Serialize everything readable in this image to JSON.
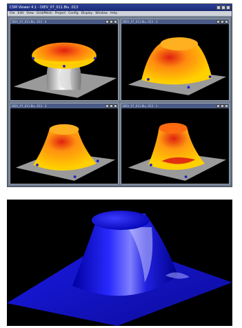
{
  "app": {
    "title": "CSM Viewer 4.1 - DIEV_07_011.Biu .013",
    "menu": [
      "File",
      "Edit",
      "View",
      "Grid/Mesh",
      "Project",
      "Config",
      "Display",
      "Window",
      "Help"
    ]
  },
  "subwindows": [
    {
      "title": "DIEV_07_011.Biu .013 : 4"
    },
    {
      "title": "DIEV_07_011.Biu .013 : 3"
    },
    {
      "title": "DIEV_07_011.Biu .013 : 2"
    },
    {
      "title": "DIEV_07_011.Biu .013 : 1"
    }
  ],
  "colors": {
    "plate": "#9a9a9a",
    "hot": "#e02010",
    "warm": "#ffd000",
    "cool": "#2020c0",
    "render_blue": "#1a1aff"
  }
}
